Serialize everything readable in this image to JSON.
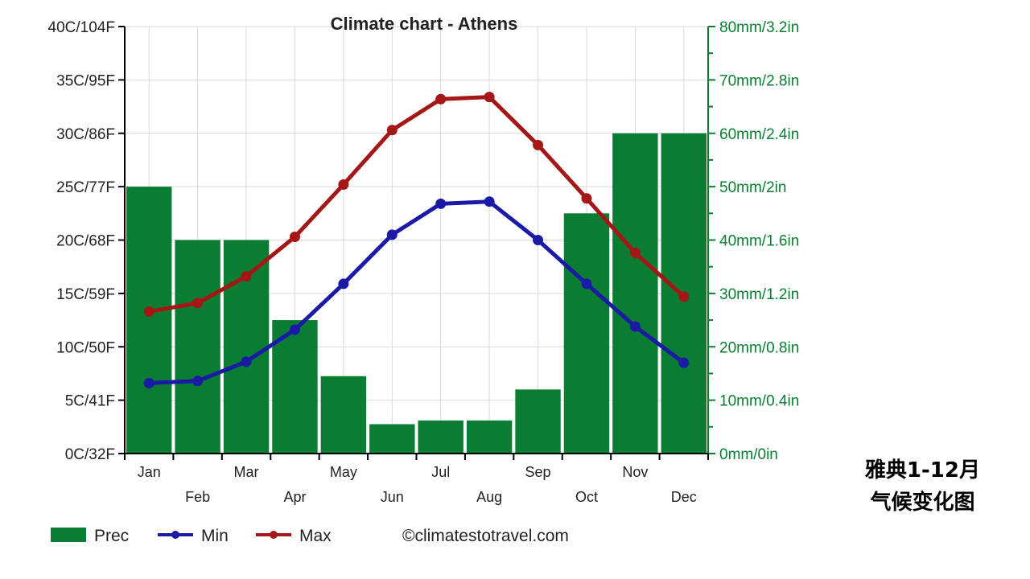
{
  "chart_data": {
    "type": "bar+line",
    "title": "Climate chart - Athens",
    "categories": [
      "Jan",
      "Feb",
      "Mar",
      "Apr",
      "May",
      "Jun",
      "Jul",
      "Aug",
      "Sep",
      "Oct",
      "Nov",
      "Dec"
    ],
    "y_left": {
      "range": [
        0,
        40
      ],
      "ticks": [
        "0C/32F",
        "5C/41F",
        "10C/50F",
        "15C/59F",
        "20C/68F",
        "25C/77F",
        "30C/86F",
        "35C/95F",
        "40C/104F"
      ]
    },
    "y_right": {
      "range": [
        0,
        80
      ],
      "ticks": [
        "0mm/0in",
        "10mm/0.4in",
        "20mm/0.8in",
        "30mm/1.2in",
        "40mm/1.6in",
        "50mm/2in",
        "60mm/2.4in",
        "70mm/2.8in",
        "80mm/3.2in"
      ]
    },
    "grid": true,
    "legend_position": "bottom",
    "series": [
      {
        "name": "Prec",
        "kind": "bar",
        "axis": "right",
        "color": "#0a7d32",
        "values": [
          50,
          40,
          40,
          25,
          14.5,
          5.5,
          6.2,
          6.2,
          12,
          45,
          60,
          60
        ]
      },
      {
        "name": "Min",
        "kind": "line",
        "axis": "left",
        "color": "#1a1aa6",
        "values": [
          6.6,
          6.8,
          8.6,
          11.6,
          15.9,
          20.5,
          23.4,
          23.6,
          20.0,
          15.9,
          11.9,
          8.5
        ]
      },
      {
        "name": "Max",
        "kind": "line",
        "axis": "left",
        "color": "#a51616",
        "values": [
          13.3,
          14.1,
          16.6,
          20.3,
          25.2,
          30.3,
          33.2,
          33.4,
          28.9,
          23.9,
          18.8,
          14.7
        ]
      }
    ],
    "credit": "©climatestotravel.com"
  },
  "caption": {
    "line1": "雅典1-12月",
    "line2": "气候变化图"
  }
}
